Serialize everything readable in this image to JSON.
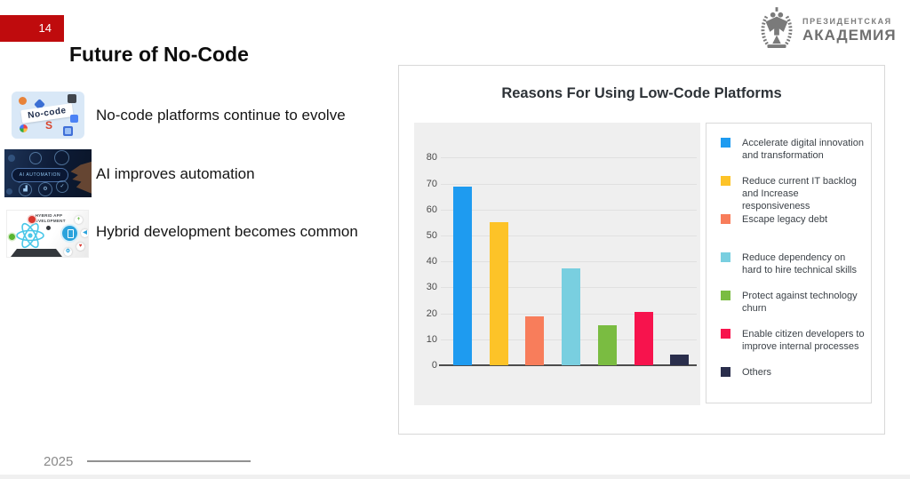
{
  "slide": {
    "page_number": "14",
    "title": "Future of No-Code",
    "year": "2025",
    "accent_red": "#bf0b0d"
  },
  "logo": {
    "line1": "ПРЕЗИДЕНТСКАЯ",
    "line2": "АКАДЕМИЯ"
  },
  "bullets": [
    {
      "label": "No-code platforms continue to evolve",
      "thumb_label": "No-code"
    },
    {
      "label": "AI improves automation",
      "thumb_label": "AI AUTOMATION"
    },
    {
      "label": "Hybrid development becomes common",
      "thumb_label": "HYBRID APP DEVELOPMENT"
    }
  ],
  "chart_data": {
    "type": "bar",
    "title": "Reasons For Using Low-Code Platforms",
    "categories": [
      "Accelerate digital innovation and transformation",
      "Reduce current IT backlog and Increase responsiveness",
      "Escape legacy debt",
      "Reduce dependency on hard to hire technical skills",
      "Protect against technology churn",
      "Enable citizen developers to improve internal processes",
      "Others"
    ],
    "values": [
      69,
      55,
      19,
      37.5,
      15.5,
      20.5,
      4
    ],
    "colors": [
      "#1e9bf0",
      "#fdc328",
      "#f87d5b",
      "#79cfe0",
      "#7abc41",
      "#f7134d",
      "#2a2e4c"
    ],
    "xlabel": "",
    "ylabel": "",
    "ylim": [
      0,
      80
    ],
    "yticks": [
      0,
      10,
      20,
      30,
      40,
      50,
      60,
      70,
      80
    ],
    "grid": true,
    "legend_position": "right",
    "plot_background": "#efefef"
  }
}
